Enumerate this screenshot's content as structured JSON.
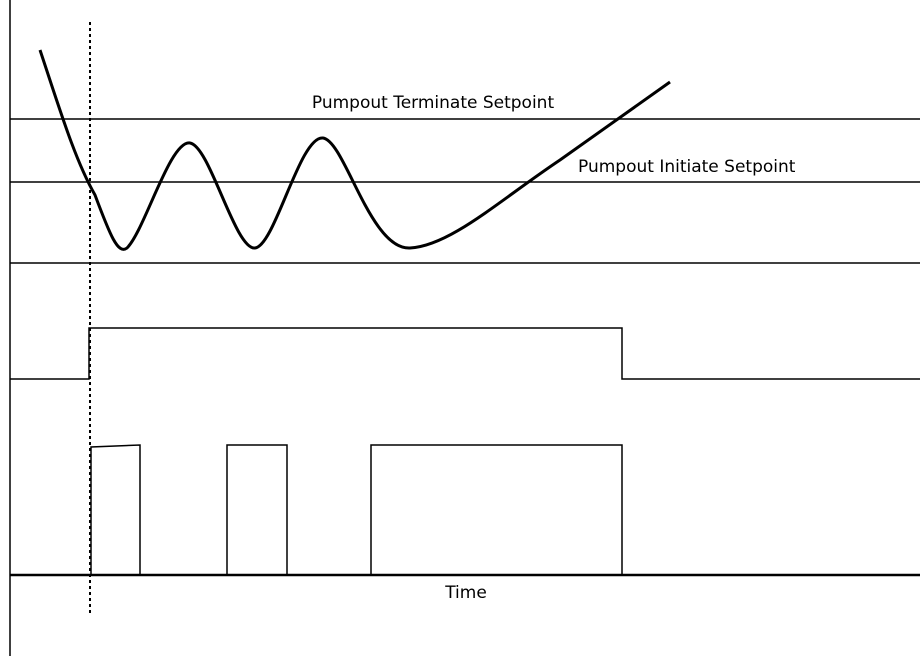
{
  "labels": {
    "terminate": "Pumpout Terminate Setpoint",
    "initiate": "Pumpout Initiate Setpoint",
    "x_axis": "Time"
  }
}
